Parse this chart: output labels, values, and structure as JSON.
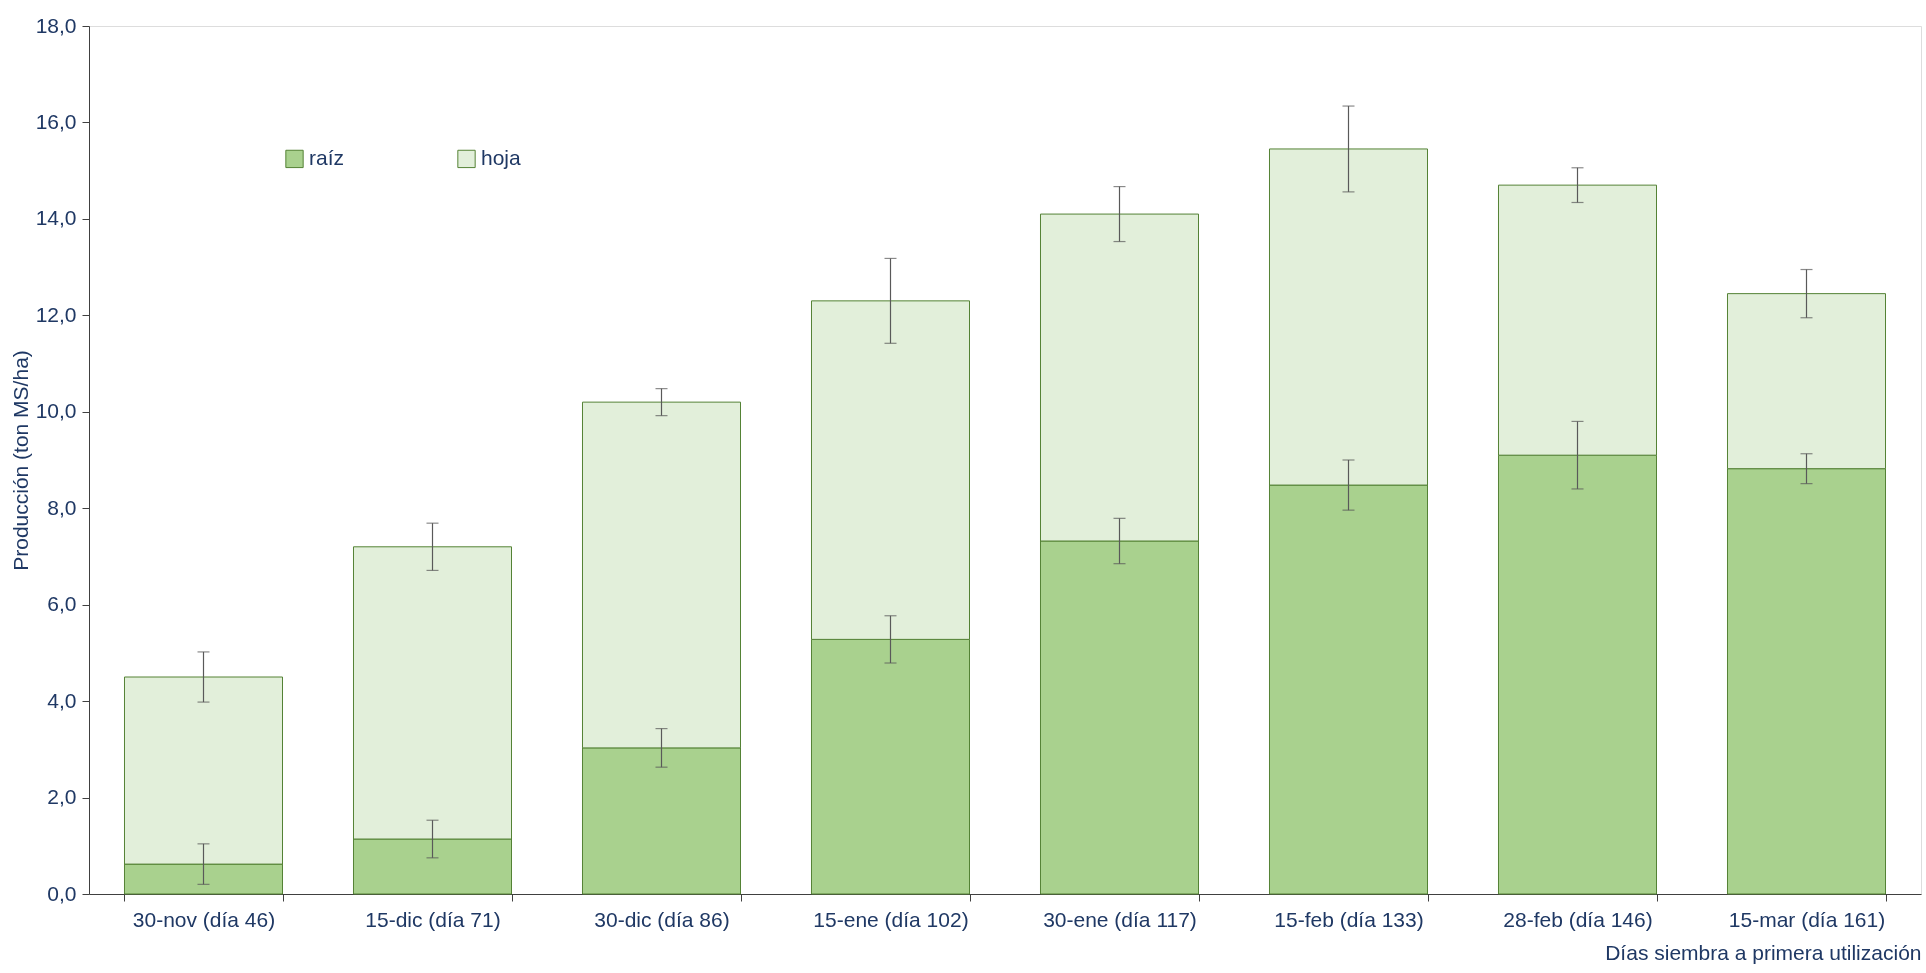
{
  "chart_data": {
    "type": "bar",
    "stacked": true,
    "ylabel": "Producción (ton MS/ha)",
    "xlabel": "Días siembra a primera utilización",
    "categories": [
      "30-nov (día 46)",
      "15-dic (día 71)",
      "30-dic (día 86)",
      "15-ene (día 102)",
      "30-ene (día 117)",
      "15-feb (día 133)",
      "28-feb (día 146)",
      "15-mar (día 161)"
    ],
    "series": [
      {
        "name": "raíz",
        "color": "#a9d18e",
        "values": [
          0.62,
          1.14,
          3.03,
          5.28,
          7.32,
          8.48,
          9.1,
          8.82
        ],
        "errors": [
          0.42,
          0.39,
          0.4,
          0.49,
          0.47,
          0.52,
          0.7,
          0.31
        ]
      },
      {
        "name": "hoja",
        "color": "#e2efda",
        "values": [
          3.88,
          6.06,
          7.17,
          7.02,
          6.78,
          6.97,
          5.6,
          3.63
        ],
        "errors": [
          0.52,
          0.49,
          0.28,
          0.88,
          0.57,
          0.89,
          0.36,
          0.5
        ]
      }
    ],
    "ylim": [
      0,
      18
    ],
    "yticks": [
      {
        "value": 0,
        "label": "0,0"
      },
      {
        "value": 2,
        "label": "2,0"
      },
      {
        "value": 4,
        "label": "4,0"
      },
      {
        "value": 6,
        "label": "6,0"
      },
      {
        "value": 8,
        "label": "8,0"
      },
      {
        "value": 10,
        "label": "10,0"
      },
      {
        "value": 12,
        "label": "12,0"
      },
      {
        "value": 14,
        "label": "14,0"
      },
      {
        "value": 16,
        "label": "16,0"
      },
      {
        "value": 18,
        "label": "18,0"
      }
    ],
    "legend": "top left",
    "grid": false
  }
}
